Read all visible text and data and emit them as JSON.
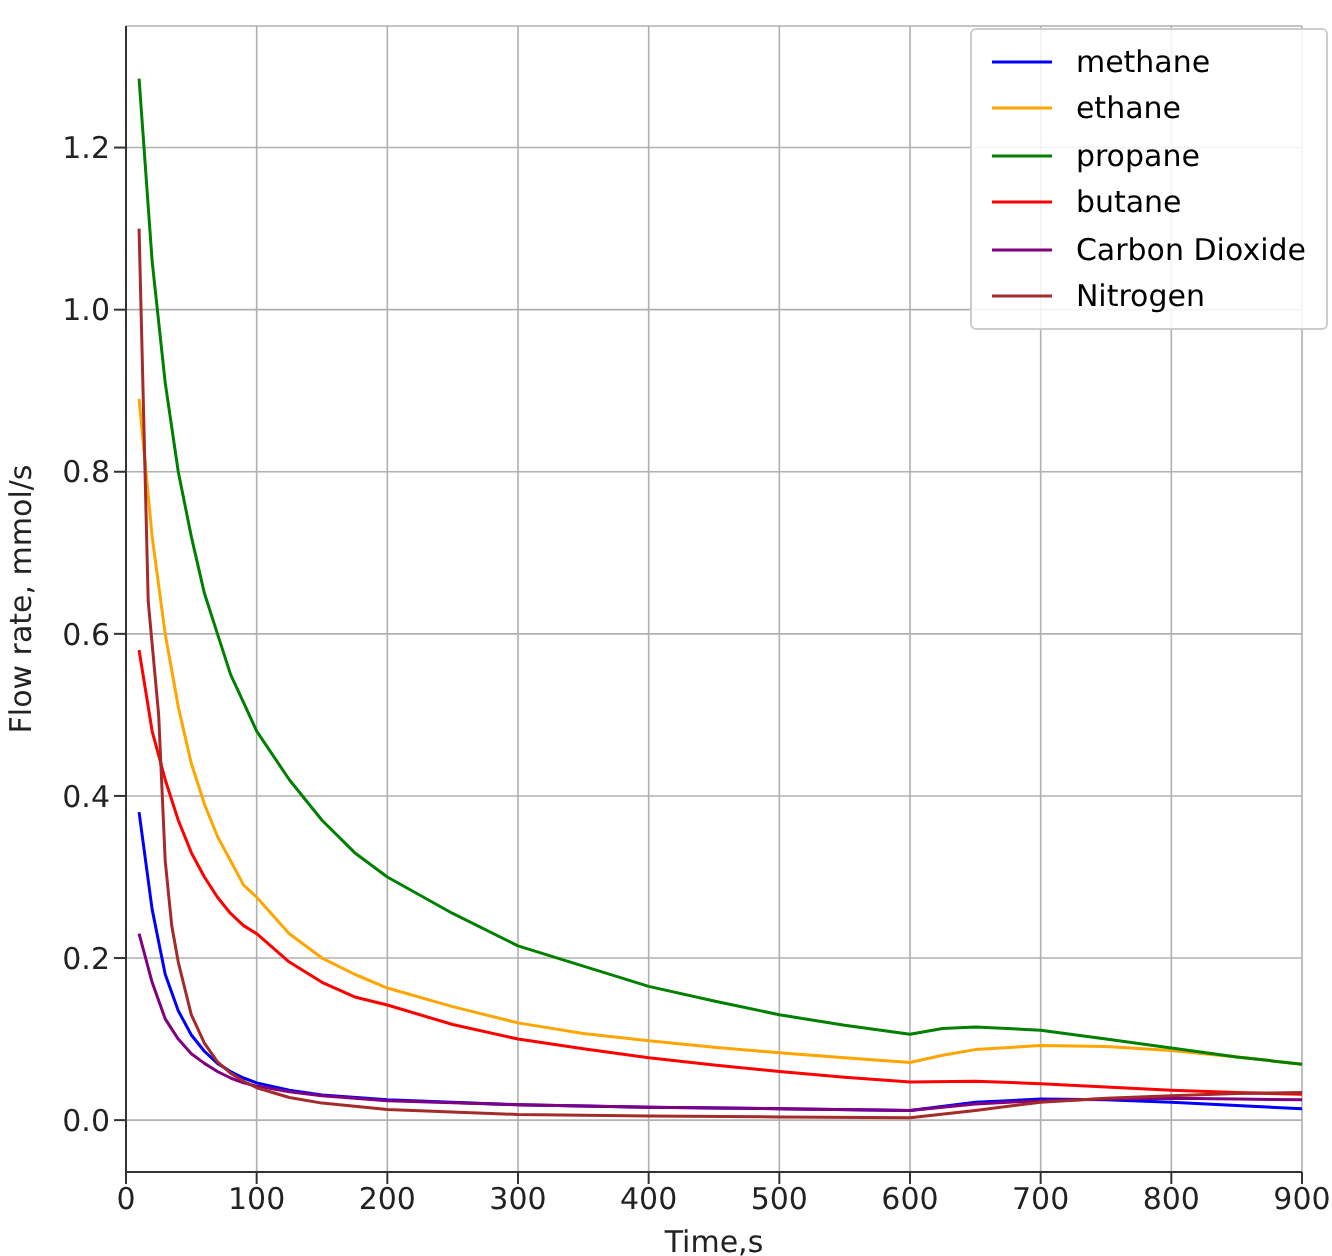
{
  "chart_data": {
    "type": "line",
    "xlabel": "Time,s",
    "ylabel": "Flow rate, mmol/s",
    "xlim": [
      0,
      900
    ],
    "xticks": [
      0,
      100,
      200,
      300,
      400,
      500,
      600,
      700,
      800,
      900
    ],
    "ylim": [
      -0.064,
      1.35
    ],
    "yticks": [
      {
        "value": 0,
        "label": "0.0"
      },
      {
        "value": 0.2,
        "label": "0.2"
      },
      {
        "value": 0.4,
        "label": "0.4"
      },
      {
        "value": 0.6,
        "label": "0.6"
      },
      {
        "value": 0.8,
        "label": "0.8"
      },
      {
        "value": 1,
        "label": "1.0"
      },
      {
        "value": 1.2,
        "label": "1.2"
      }
    ],
    "grid": true,
    "legend": "top right",
    "marker": "none",
    "line_style": "solid",
    "series": [
      {
        "name": "methane",
        "color": "#0000ff",
        "x": [
          10,
          20,
          30,
          40,
          50,
          60,
          70,
          80,
          90,
          100,
          125,
          150,
          200,
          300,
          400,
          500,
          600,
          650,
          700,
          750,
          800,
          850,
          900
        ],
        "values": [
          0.38,
          0.26,
          0.18,
          0.135,
          0.105,
          0.085,
          0.07,
          0.06,
          0.052,
          0.046,
          0.037,
          0.031,
          0.025,
          0.019,
          0.016,
          0.014,
          0.012,
          0.022,
          0.026,
          0.025,
          0.022,
          0.018,
          0.014
        ]
      },
      {
        "name": "ethane",
        "color": "#ffa500",
        "x": [
          10,
          20,
          30,
          40,
          50,
          60,
          70,
          80,
          90,
          100,
          125,
          150,
          175,
          200,
          250,
          300,
          350,
          400,
          450,
          500,
          550,
          600,
          625,
          650,
          700,
          750,
          800,
          850,
          900
        ],
        "values": [
          0.89,
          0.72,
          0.6,
          0.51,
          0.44,
          0.39,
          0.35,
          0.32,
          0.29,
          0.275,
          0.23,
          0.2,
          0.18,
          0.163,
          0.14,
          0.12,
          0.107,
          0.098,
          0.09,
          0.083,
          0.077,
          0.071,
          0.08,
          0.087,
          0.092,
          0.091,
          0.086,
          0.078,
          0.069
        ]
      },
      {
        "name": "propane",
        "color": "#008000",
        "x": [
          10,
          20,
          30,
          40,
          50,
          60,
          70,
          80,
          90,
          100,
          125,
          150,
          175,
          200,
          250,
          300,
          350,
          400,
          450,
          500,
          550,
          600,
          625,
          650,
          700,
          750,
          800,
          850,
          900
        ],
        "values": [
          1.285,
          1.06,
          0.91,
          0.8,
          0.72,
          0.65,
          0.6,
          0.55,
          0.515,
          0.48,
          0.42,
          0.37,
          0.33,
          0.3,
          0.255,
          0.215,
          0.19,
          0.165,
          0.147,
          0.13,
          0.117,
          0.106,
          0.113,
          0.115,
          0.111,
          0.1,
          0.089,
          0.078,
          0.069
        ]
      },
      {
        "name": "butane",
        "color": "#ff0000",
        "x": [
          10,
          20,
          30,
          40,
          50,
          60,
          70,
          80,
          90,
          100,
          125,
          150,
          175,
          200,
          250,
          300,
          350,
          400,
          450,
          500,
          550,
          600,
          650,
          700,
          750,
          800,
          850,
          900
        ],
        "values": [
          0.58,
          0.48,
          0.42,
          0.37,
          0.33,
          0.3,
          0.275,
          0.255,
          0.24,
          0.23,
          0.195,
          0.17,
          0.152,
          0.142,
          0.118,
          0.1,
          0.088,
          0.077,
          0.068,
          0.06,
          0.053,
          0.047,
          0.048,
          0.045,
          0.041,
          0.037,
          0.034,
          0.032
        ]
      },
      {
        "name": "Carbon Dioxide",
        "color": "#800080",
        "x": [
          10,
          20,
          30,
          40,
          50,
          60,
          70,
          80,
          90,
          100,
          125,
          150,
          200,
          300,
          400,
          500,
          600,
          650,
          700,
          750,
          800,
          850,
          900
        ],
        "values": [
          0.23,
          0.17,
          0.125,
          0.1,
          0.082,
          0.07,
          0.06,
          0.052,
          0.046,
          0.042,
          0.035,
          0.03,
          0.024,
          0.019,
          0.016,
          0.014,
          0.012,
          0.02,
          0.024,
          0.026,
          0.027,
          0.026,
          0.025
        ]
      },
      {
        "name": "Nitrogen",
        "color": "#a52a2a",
        "x": [
          10,
          17,
          25,
          30,
          35,
          40,
          50,
          60,
          70,
          80,
          90,
          100,
          125,
          150,
          200,
          300,
          400,
          500,
          600,
          650,
          700,
          750,
          800,
          850,
          900
        ],
        "values": [
          1.1,
          0.64,
          0.5,
          0.32,
          0.24,
          0.195,
          0.13,
          0.095,
          0.072,
          0.058,
          0.048,
          0.04,
          0.028,
          0.021,
          0.013,
          0.007,
          0.005,
          0.004,
          0.003,
          0.012,
          0.022,
          0.027,
          0.03,
          0.033,
          0.034
        ]
      }
    ]
  }
}
